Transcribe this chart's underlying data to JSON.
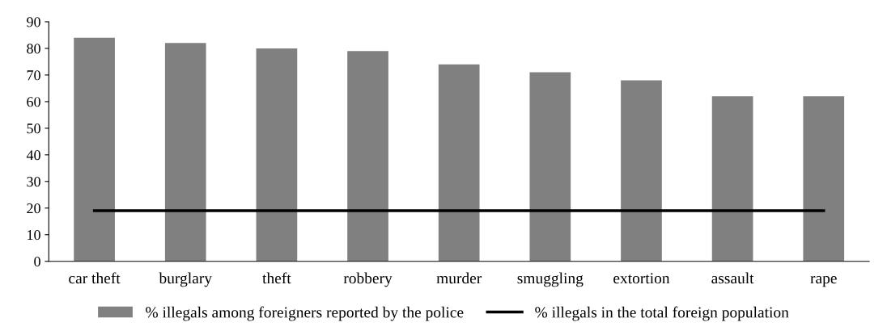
{
  "chart_data": {
    "type": "bar",
    "categories": [
      "car theft",
      "burglary",
      "theft",
      "robbery",
      "murder",
      "smuggling",
      "extortion",
      "assault",
      "rape"
    ],
    "series": [
      {
        "name": "% illegals among foreigners reported by the police",
        "color": "#808080",
        "values": [
          84,
          82,
          80,
          79,
          74,
          71,
          68,
          62,
          62
        ]
      },
      {
        "name": "% illegals in the total foreign population",
        "type": "line",
        "color": "#000000",
        "values": [
          19,
          19,
          19,
          19,
          19,
          19,
          19,
          19,
          19
        ]
      }
    ],
    "ylim": [
      0,
      90
    ],
    "yticks": [
      0,
      10,
      20,
      30,
      40,
      50,
      60,
      70,
      80,
      90
    ],
    "grid": false,
    "legend": "bottom"
  }
}
